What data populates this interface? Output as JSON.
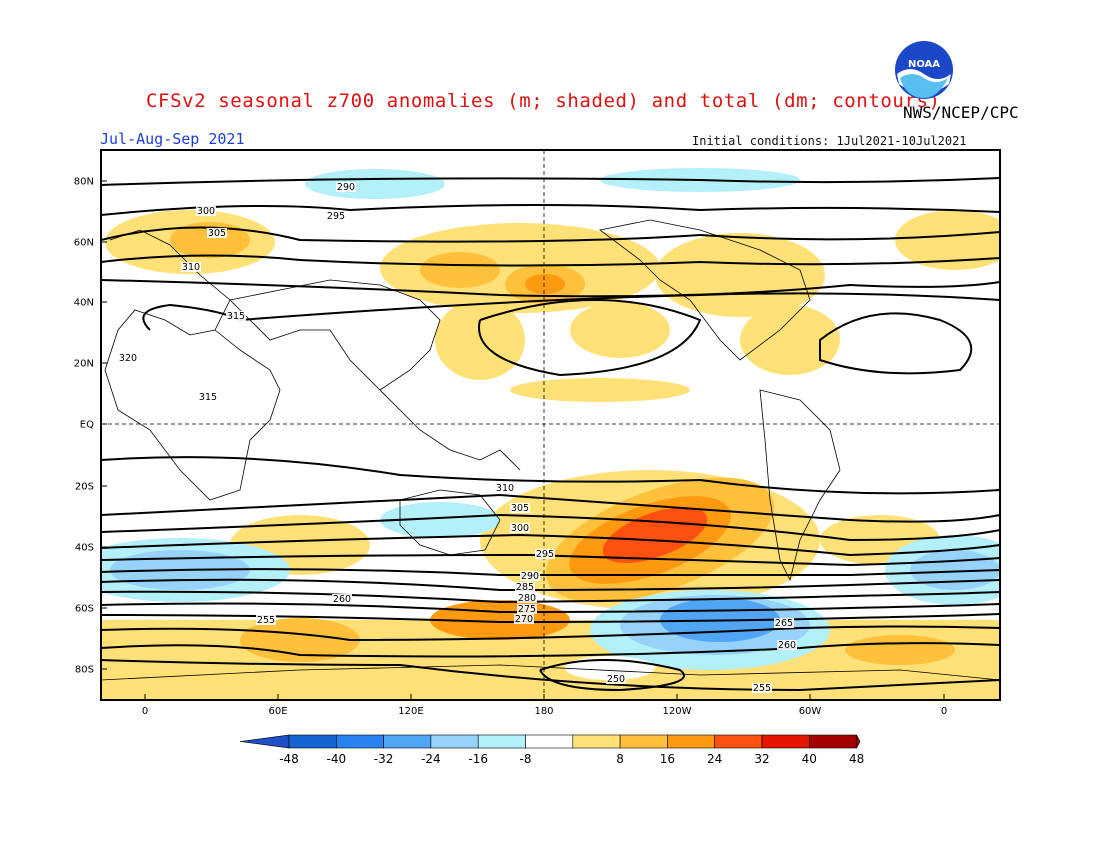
{
  "title": "CFSv2 seasonal z700 anomalies (m; shaded) and total (dm; contours)",
  "agency": "NWS/NCEP/CPC",
  "logo_text": "NOAA",
  "period": "Jul-Aug-Sep 2021",
  "initial_conditions": "Initial conditions: 1Jul2021-10Jul2021",
  "lat_labels": [
    "80N",
    "60N",
    "40N",
    "20N",
    "EQ",
    "20S",
    "40S",
    "60S",
    "80S"
  ],
  "lon_labels": [
    "0",
    "60E",
    "120E",
    "180",
    "120W",
    "60W",
    "0"
  ],
  "colorbar": {
    "labels": [
      "-48",
      "-40",
      "-32",
      "-24",
      "-16",
      "-8",
      "8",
      "16",
      "24",
      "32",
      "40",
      "48"
    ],
    "colors": [
      "#1464d2",
      "#2882f0",
      "#50a5f5",
      "#96d2fa",
      "#b4f0fa",
      "#ffffff",
      "#ffe178",
      "#ffc03c",
      "#ff9910",
      "#ff5010",
      "#e61500",
      "#a50000"
    ],
    "low_arrow": "#1f4fc8",
    "high_arrow": "#a00000"
  },
  "contour_labels": [
    "290",
    "295",
    "300",
    "305",
    "310",
    "315",
    "320",
    "315",
    "310",
    "305",
    "300",
    "295",
    "290",
    "285",
    "280",
    "275",
    "270",
    "265",
    "260",
    "255",
    "250",
    "255",
    "260"
  ]
}
